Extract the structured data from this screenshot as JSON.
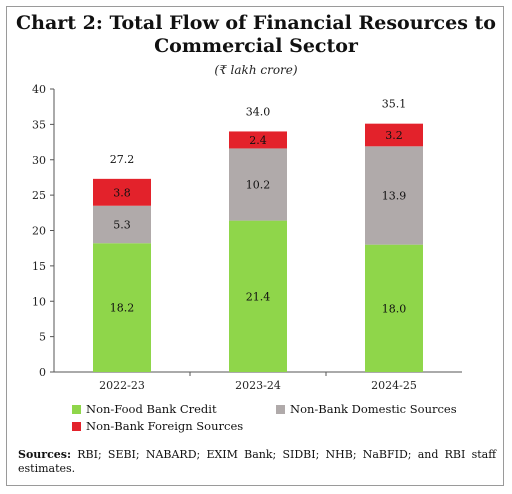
{
  "chart_data": {
    "type": "bar",
    "stacked": true,
    "title": "Chart 2: Total Flow of Financial Resources to Commercial Sector",
    "subtitle": "(₹ lakh crore)",
    "categories": [
      "2022-23",
      "2023-24",
      "2024-25"
    ],
    "series": [
      {
        "name": "Non-Food Bank Credit",
        "values": [
          18.2,
          21.4,
          18.0
        ],
        "color": "#8fd64a"
      },
      {
        "name": "Non-Bank Domestic Sources",
        "values": [
          5.3,
          10.2,
          13.9
        ],
        "color": "#b0aaaa"
      },
      {
        "name": "Non-Bank Foreign Sources",
        "values": [
          3.8,
          2.4,
          3.2
        ],
        "color": "#e3222b"
      }
    ],
    "totals": [
      "27.2",
      "34.0",
      "35.1"
    ],
    "data_labels": [
      [
        "18.2",
        "5.3",
        "3.8"
      ],
      [
        "21.4",
        "10.2",
        "2.4"
      ],
      [
        "18.0",
        "13.9",
        "3.2"
      ]
    ],
    "ylim": [
      0,
      40
    ],
    "yticks": [
      0,
      5,
      10,
      15,
      20,
      25,
      30,
      35,
      40
    ],
    "grid": false,
    "legend_position": "bottom"
  },
  "title_line1": "Chart 2: Total Flow of Financial Resources to",
  "title_line2": "Commercial Sector",
  "subtitle": "(₹ lakh crore)",
  "legend": {
    "item1": "Non-Food Bank Credit",
    "item2": "Non-Bank Domestic Sources",
    "item3": "Non-Bank Foreign Sources"
  },
  "sources_label": "Sources:",
  "sources_text": "RBI; SEBI; NABARD; EXIM Bank; SIDBI; NHB; NaBFID; and RBI staff estimates."
}
